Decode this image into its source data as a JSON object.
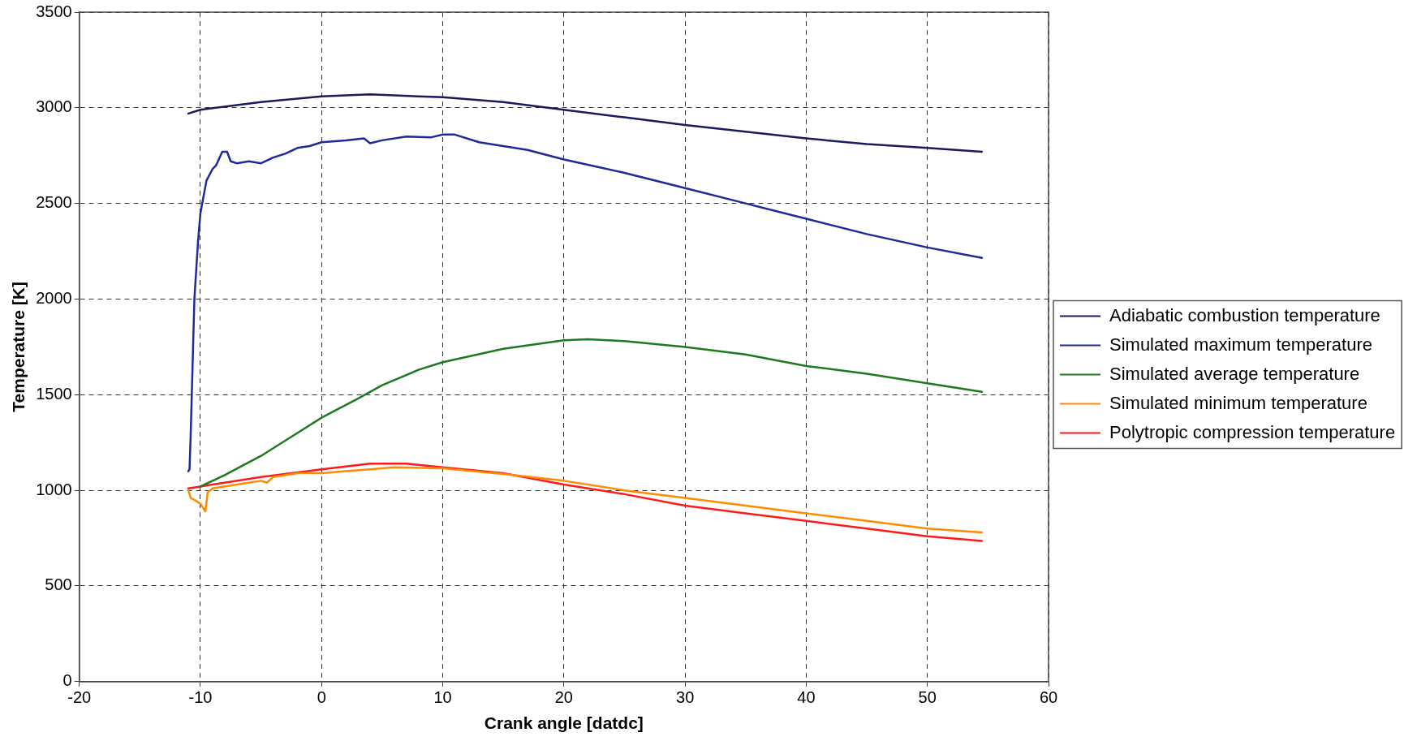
{
  "chart_data": {
    "type": "line",
    "xlabel": "Crank angle [datdc]",
    "ylabel": "Temperature [K]",
    "xlim": [
      -20,
      60
    ],
    "xticks": [
      -20,
      -10,
      0,
      10,
      20,
      30,
      40,
      50,
      60
    ],
    "ylim": [
      0,
      3500
    ],
    "yticks": [
      0,
      500,
      1000,
      1500,
      2000,
      2500,
      3000,
      3500
    ],
    "grid": true,
    "legend": "right",
    "marker": "none",
    "line_style": "solid",
    "series": [
      {
        "name": "Adiabatic combustion temperature",
        "color": "#1a1a5e",
        "x": [
          -11,
          -10,
          -5,
          0,
          4,
          10,
          15,
          20,
          25,
          30,
          35,
          40,
          45,
          50,
          54.5
        ],
        "values": [
          2970,
          2990,
          3030,
          3060,
          3070,
          3055,
          3030,
          2990,
          2950,
          2910,
          2875,
          2840,
          2810,
          2790,
          2770
        ]
      },
      {
        "name": "Simulated maximum temperature",
        "color": "#1f2a9a",
        "x": [
          -11,
          -10.9,
          -10.8,
          -10.5,
          -10.2,
          -10,
          -9.5,
          -9,
          -8.7,
          -8.2,
          -7.8,
          -7.5,
          -7,
          -6,
          -5,
          -4,
          -3,
          -2,
          -1,
          0,
          2,
          3.5,
          4,
          5,
          7,
          9,
          10,
          11,
          13,
          17,
          20,
          25,
          30,
          35,
          40,
          45,
          50,
          54.5
        ],
        "values": [
          1100,
          1110,
          1300,
          2000,
          2300,
          2450,
          2620,
          2680,
          2700,
          2770,
          2770,
          2720,
          2710,
          2720,
          2710,
          2740,
          2760,
          2790,
          2800,
          2820,
          2830,
          2840,
          2815,
          2830,
          2850,
          2845,
          2860,
          2860,
          2820,
          2780,
          2730,
          2660,
          2580,
          2500,
          2420,
          2340,
          2270,
          2215
        ]
      },
      {
        "name": "Simulated average temperature",
        "color": "#1e7a1e",
        "x": [
          -10,
          -8,
          -5,
          -2,
          0,
          3,
          5,
          8,
          10,
          15,
          20,
          22,
          25,
          30,
          35,
          40,
          45,
          50,
          54.5
        ],
        "values": [
          1020,
          1080,
          1180,
          1300,
          1380,
          1480,
          1550,
          1630,
          1670,
          1740,
          1785,
          1790,
          1780,
          1750,
          1710,
          1650,
          1610,
          1560,
          1515
        ]
      },
      {
        "name": "Simulated minimum temperature",
        "color": "#ff8c00",
        "x": [
          -11,
          -10.8,
          -10.5,
          -10,
          -9.6,
          -9.4,
          -9,
          -7,
          -5,
          -4.5,
          -4,
          -2,
          0,
          2,
          4,
          6,
          10,
          15,
          20,
          25,
          30,
          35,
          40,
          45,
          50,
          54.5
        ],
        "values": [
          1000,
          960,
          950,
          930,
          890,
          990,
          1010,
          1030,
          1050,
          1040,
          1070,
          1090,
          1090,
          1100,
          1110,
          1120,
          1115,
          1085,
          1050,
          1000,
          960,
          920,
          880,
          840,
          800,
          780
        ]
      },
      {
        "name": "Polytropic compression temperature",
        "color": "#ff1a1a",
        "x": [
          -11,
          -10,
          -5,
          0,
          4,
          7,
          10,
          15,
          20,
          25,
          30,
          35,
          40,
          45,
          50,
          54.5
        ],
        "values": [
          1010,
          1020,
          1070,
          1110,
          1140,
          1140,
          1120,
          1090,
          1030,
          980,
          920,
          880,
          840,
          800,
          760,
          735
        ]
      }
    ]
  }
}
